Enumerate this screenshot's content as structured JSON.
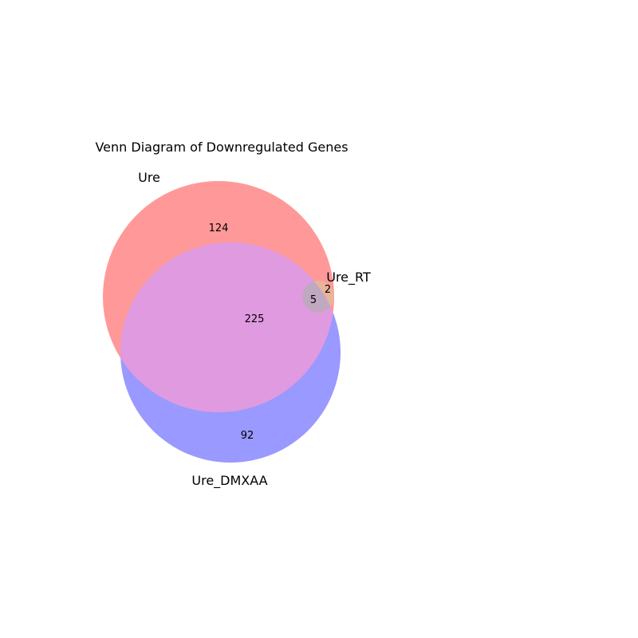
{
  "title": "Venn Diagram of Downregulated Genes",
  "sets": [
    {
      "key": "A",
      "name": "Ure",
      "color": "#ff9999"
    },
    {
      "key": "B",
      "name": "Ure_DMXAA",
      "color": "#9999ff"
    },
    {
      "key": "C",
      "name": "Ure_RT",
      "color": "#f0b87f"
    }
  ],
  "regions": {
    "A_only": "124",
    "A_and_B": "225",
    "B_only": "92",
    "A_and_C": "2",
    "A_B_C": "5"
  },
  "colors": {
    "A_B_overlap": "#e09ae0",
    "triple_overlap": "#c0a8c0",
    "A_C_overlap": "#e8b49a"
  }
}
